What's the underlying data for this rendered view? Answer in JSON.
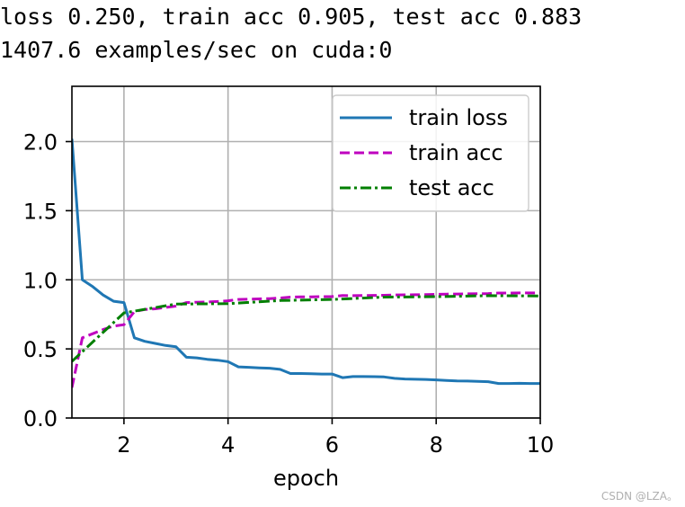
{
  "console": {
    "line1": "loss 0.250, train acc 0.905, test acc 0.883",
    "line2": "1407.6 examples/sec on cuda:0"
  },
  "watermark": "CSDN @LZA。",
  "colors": {
    "train_loss": "#1f77b4",
    "train_acc": "#bf00bf",
    "test_acc": "#007f00",
    "grid": "#b0b0b0",
    "axes": "#000000"
  },
  "chart_data": {
    "type": "line",
    "title": "",
    "xlabel": "epoch",
    "ylabel": "",
    "xlim": [
      1,
      10
    ],
    "ylim": [
      0,
      2.4
    ],
    "grid": true,
    "legend_placement": "top-right",
    "x_ticks": [
      2,
      4,
      6,
      8,
      10
    ],
    "x_tick_labels": [
      "2",
      "4",
      "6",
      "8",
      "10"
    ],
    "y_ticks": [
      0.0,
      0.5,
      1.0,
      1.5,
      2.0
    ],
    "y_tick_labels": [
      "0.0",
      "0.5",
      "1.0",
      "1.5",
      "2.0"
    ],
    "series": [
      {
        "name": "train loss",
        "color": "#1f77b4",
        "style": "solid",
        "x": [
          1.0,
          1.2,
          1.4,
          1.6,
          1.8,
          2.0,
          2.2,
          2.4,
          2.6,
          2.8,
          3.0,
          3.2,
          3.4,
          3.6,
          3.8,
          4.0,
          4.2,
          4.4,
          4.6,
          4.8,
          5.0,
          5.2,
          5.4,
          5.6,
          5.8,
          6.0,
          6.2,
          6.4,
          6.6,
          6.8,
          7.0,
          7.2,
          7.4,
          7.6,
          7.8,
          8.0,
          8.2,
          8.4,
          8.6,
          8.8,
          9.0,
          9.2,
          9.4,
          9.6,
          9.8,
          10.0
        ],
        "values": [
          2.02,
          1.0,
          0.95,
          0.89,
          0.845,
          0.835,
          0.58,
          0.555,
          0.54,
          0.525,
          0.515,
          0.44,
          0.435,
          0.425,
          0.418,
          0.408,
          0.37,
          0.367,
          0.363,
          0.36,
          0.352,
          0.322,
          0.322,
          0.32,
          0.318,
          0.318,
          0.292,
          0.3,
          0.3,
          0.299,
          0.297,
          0.287,
          0.282,
          0.28,
          0.279,
          0.276,
          0.271,
          0.268,
          0.267,
          0.265,
          0.263,
          0.25,
          0.25,
          0.251,
          0.25,
          0.25
        ]
      },
      {
        "name": "train acc",
        "color": "#bf00bf",
        "style": "dashed",
        "x": [
          1.0,
          1.2,
          1.4,
          1.6,
          1.8,
          2.0,
          2.2,
          2.4,
          2.6,
          2.8,
          3.0,
          3.2,
          3.4,
          3.6,
          3.8,
          4.0,
          4.2,
          4.4,
          4.6,
          4.8,
          5.0,
          5.2,
          5.4,
          5.6,
          5.8,
          6.0,
          6.2,
          6.4,
          6.6,
          6.8,
          7.0,
          7.2,
          7.4,
          7.6,
          7.8,
          8.0,
          8.2,
          8.4,
          8.6,
          8.8,
          9.0,
          9.2,
          9.4,
          9.6,
          9.8,
          10.0
        ],
        "values": [
          0.22,
          0.58,
          0.61,
          0.64,
          0.665,
          0.675,
          0.77,
          0.785,
          0.79,
          0.8,
          0.81,
          0.835,
          0.838,
          0.84,
          0.843,
          0.848,
          0.858,
          0.86,
          0.862,
          0.864,
          0.868,
          0.875,
          0.876,
          0.877,
          0.878,
          0.879,
          0.886,
          0.885,
          0.886,
          0.887,
          0.888,
          0.89,
          0.891,
          0.892,
          0.893,
          0.894,
          0.896,
          0.897,
          0.898,
          0.899,
          0.9,
          0.904,
          0.904,
          0.905,
          0.905,
          0.905
        ]
      },
      {
        "name": "test acc",
        "color": "#007f00",
        "style": "dashdot",
        "x": [
          1,
          2,
          3,
          4,
          5,
          6,
          7,
          8,
          9,
          10
        ],
        "values": [
          0.41,
          0.76,
          0.825,
          0.827,
          0.85,
          0.858,
          0.875,
          0.878,
          0.885,
          0.883
        ]
      }
    ]
  }
}
